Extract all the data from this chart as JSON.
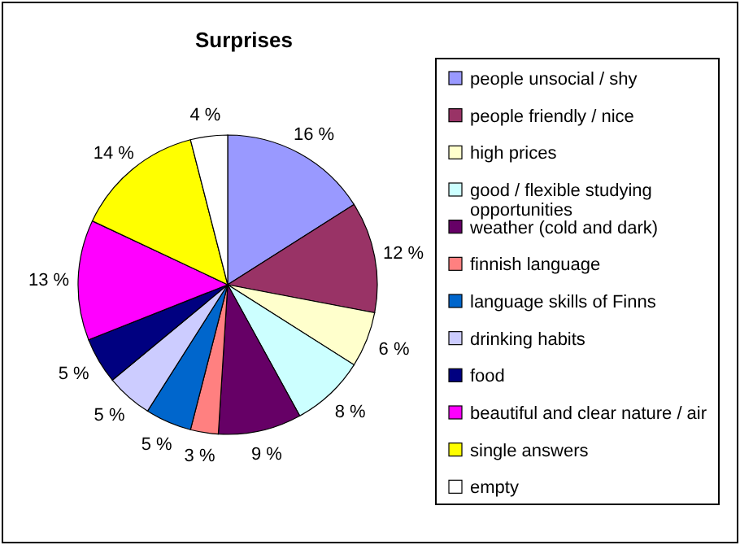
{
  "chart_data": {
    "type": "pie",
    "title": "Surprises",
    "categories": [
      "people unsocial / shy",
      "people friendly / nice",
      "high prices",
      "good / flexible studying opportunities",
      "weather (cold and dark)",
      "finnish language",
      "language skills of Finns",
      "drinking habits",
      "food",
      "beautiful and clear nature / air",
      "single answers",
      "empty"
    ],
    "values": [
      16,
      12,
      6,
      8,
      9,
      3,
      5,
      5,
      5,
      13,
      14,
      4
    ],
    "value_labels": [
      "16 %",
      "12 %",
      "6 %",
      "8 %",
      "9 %",
      "3 %",
      "5 %",
      "5 %",
      "5 %",
      "13 %",
      "14 %",
      "4 %"
    ],
    "colors": [
      "#9999ff",
      "#993366",
      "#ffffcc",
      "#ccffff",
      "#660066",
      "#ff8080",
      "#0066cc",
      "#ccccff",
      "#000080",
      "#ff00ff",
      "#ffff00",
      "#ffffff"
    ],
    "legend": "right"
  }
}
